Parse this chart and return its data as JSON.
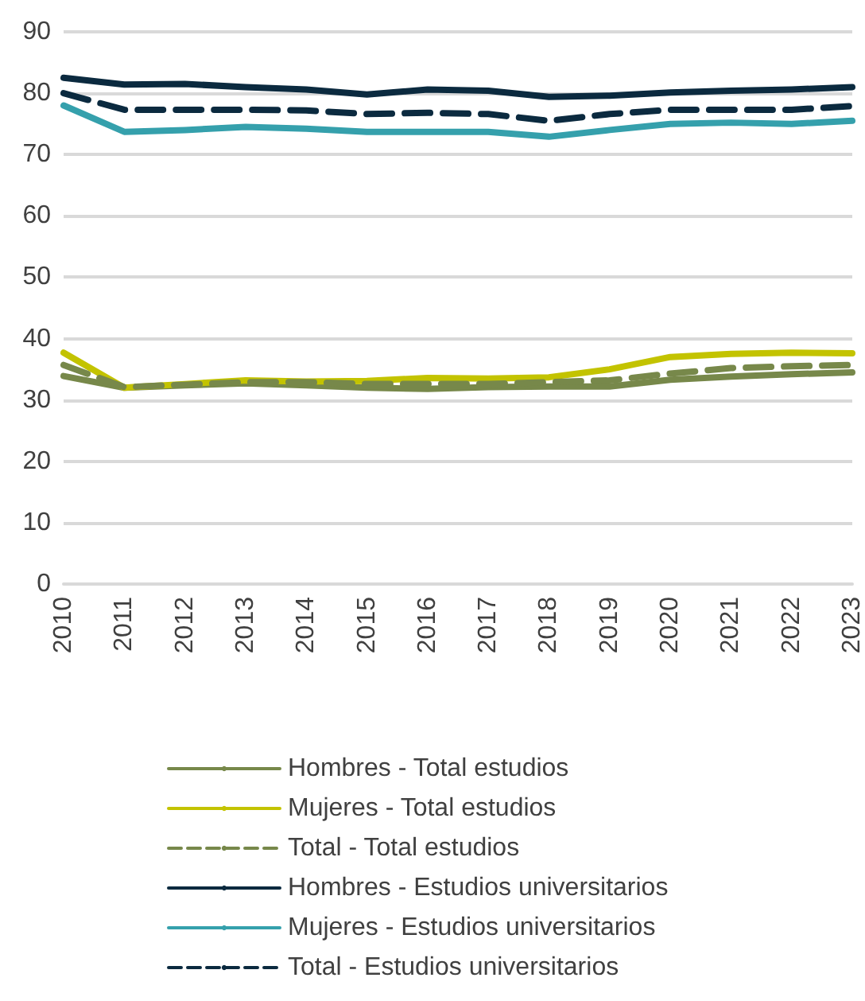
{
  "chart_data": {
    "type": "line",
    "categories": [
      "2010",
      "2011",
      "2012",
      "2013",
      "2014",
      "2015",
      "2016",
      "2017",
      "2018",
      "2019",
      "2020",
      "2021",
      "2022",
      "2023"
    ],
    "series": [
      {
        "name": "Hombres - Total estudios",
        "color": "#77884a",
        "line_style": "solid",
        "values": [
          33.9,
          32,
          32.4,
          32.7,
          32.4,
          32,
          31.8,
          32.1,
          32.2,
          32.2,
          33.3,
          33.8,
          34.2,
          34.5
        ]
      },
      {
        "name": "Mujeres - Total estudios",
        "color": "#c3c300",
        "line_style": "solid",
        "values": [
          37.7,
          32,
          32.6,
          33.2,
          33,
          33.1,
          33.6,
          33.5,
          33.7,
          35,
          37,
          37.5,
          37.7,
          37.6
        ]
      },
      {
        "name": "Total - Total estudios",
        "color": "#77884a",
        "line_style": "dashed",
        "values": [
          35.7,
          32.1,
          32.5,
          32.9,
          32.9,
          32.6,
          32.6,
          32.6,
          32.9,
          33.2,
          34.3,
          35.2,
          35.5,
          35.7
        ]
      },
      {
        "name": "Hombres - Estudios universitarios",
        "color": "#0b2a3f",
        "line_style": "solid",
        "values": [
          82.5,
          81.4,
          81.5,
          81,
          80.6,
          79.8,
          80.6,
          80.4,
          79.4,
          79.6,
          80.1,
          80.4,
          80.6,
          81
        ]
      },
      {
        "name": "Mujeres - Estudios universitarios",
        "color": "#35a0ac",
        "line_style": "solid",
        "values": [
          78,
          73.7,
          74,
          74.5,
          74.2,
          73.7,
          73.7,
          73.7,
          72.9,
          74,
          75,
          75.2,
          75,
          75.5
        ]
      },
      {
        "name": "Total - Estudios universitarios",
        "color": "#0b2a3f",
        "line_style": "dashed",
        "values": [
          80,
          77.3,
          77.3,
          77.3,
          77.2,
          76.6,
          76.8,
          76.6,
          75.5,
          76.6,
          77.3,
          77.3,
          77.3,
          77.9
        ]
      }
    ],
    "ylim": [
      0,
      90
    ],
    "yticks": [
      0,
      10,
      20,
      30,
      40,
      50,
      60,
      70,
      80,
      90
    ],
    "grid": "y",
    "legend": "bottom",
    "marker": "none"
  }
}
